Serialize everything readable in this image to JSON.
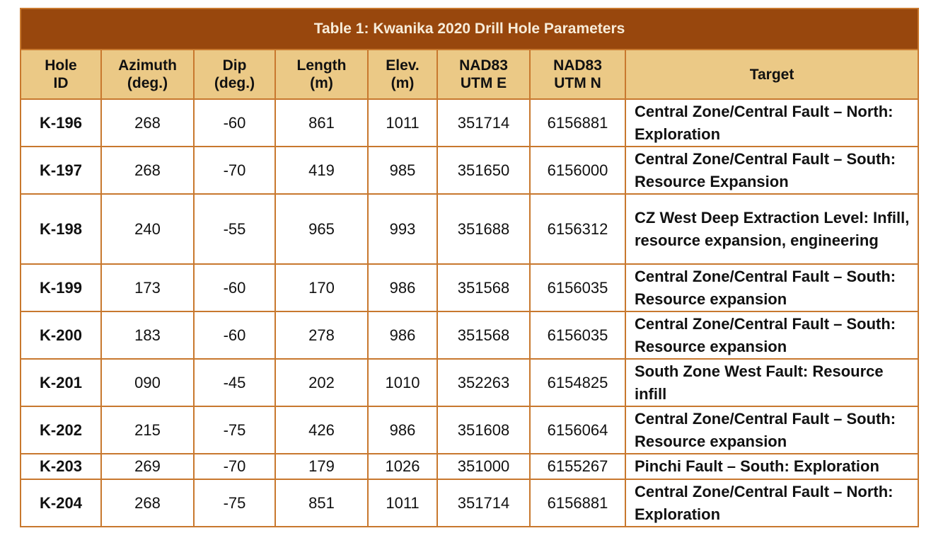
{
  "table": {
    "title": "Table 1: Kwanika 2020 Drill Hole Parameters",
    "headers": [
      "Hole\nID",
      "Azimuth\n(deg.)",
      "Dip\n(deg.)",
      "Length\n(m)",
      "Elev.\n(m)",
      "NAD83\nUTM E",
      "NAD83\nUTM N",
      "Target"
    ],
    "rows": [
      [
        "K-196",
        "268",
        "-60",
        "861",
        "1011",
        "351714",
        "6156881",
        "Central Zone/Central Fault – North: Exploration"
      ],
      [
        "K-197",
        "268",
        "-70",
        "419",
        "985",
        "351650",
        "6156000",
        "Central Zone/Central Fault – South: Resource Expansion"
      ],
      [
        "K-198",
        "240",
        "-55",
        "965",
        "993",
        "351688",
        "6156312",
        "CZ West Deep Extraction Level: Infill, resource expansion, engineering"
      ],
      [
        "K-199",
        "173",
        "-60",
        "170",
        "986",
        "351568",
        "6156035",
        "Central Zone/Central Fault – South: Resource expansion"
      ],
      [
        "K-200",
        "183",
        "-60",
        "278",
        "986",
        "351568",
        "6156035",
        "Central Zone/Central Fault – South: Resource expansion"
      ],
      [
        "K-201",
        "090",
        "-45",
        "202",
        "1010",
        "352263",
        "6154825",
        "South Zone West Fault: Resource infill"
      ],
      [
        "K-202",
        "215",
        "-75",
        "426",
        "986",
        "351608",
        "6156064",
        "Central Zone/Central Fault – South: Resource expansion"
      ],
      [
        "K-203",
        "269",
        "-70",
        "179",
        "1026",
        "351000",
        "6155267",
        "Pinchi Fault – South: Exploration"
      ],
      [
        "K-204",
        "268",
        "-75",
        "851",
        "1011",
        "351714",
        "6156881",
        "Central Zone/Central Fault – North: Exploration"
      ]
    ]
  },
  "colors": {
    "title_background": "#98470d",
    "title_text": "#f7ecd9",
    "header_background": "#ebc986",
    "border": "#c8782e"
  }
}
